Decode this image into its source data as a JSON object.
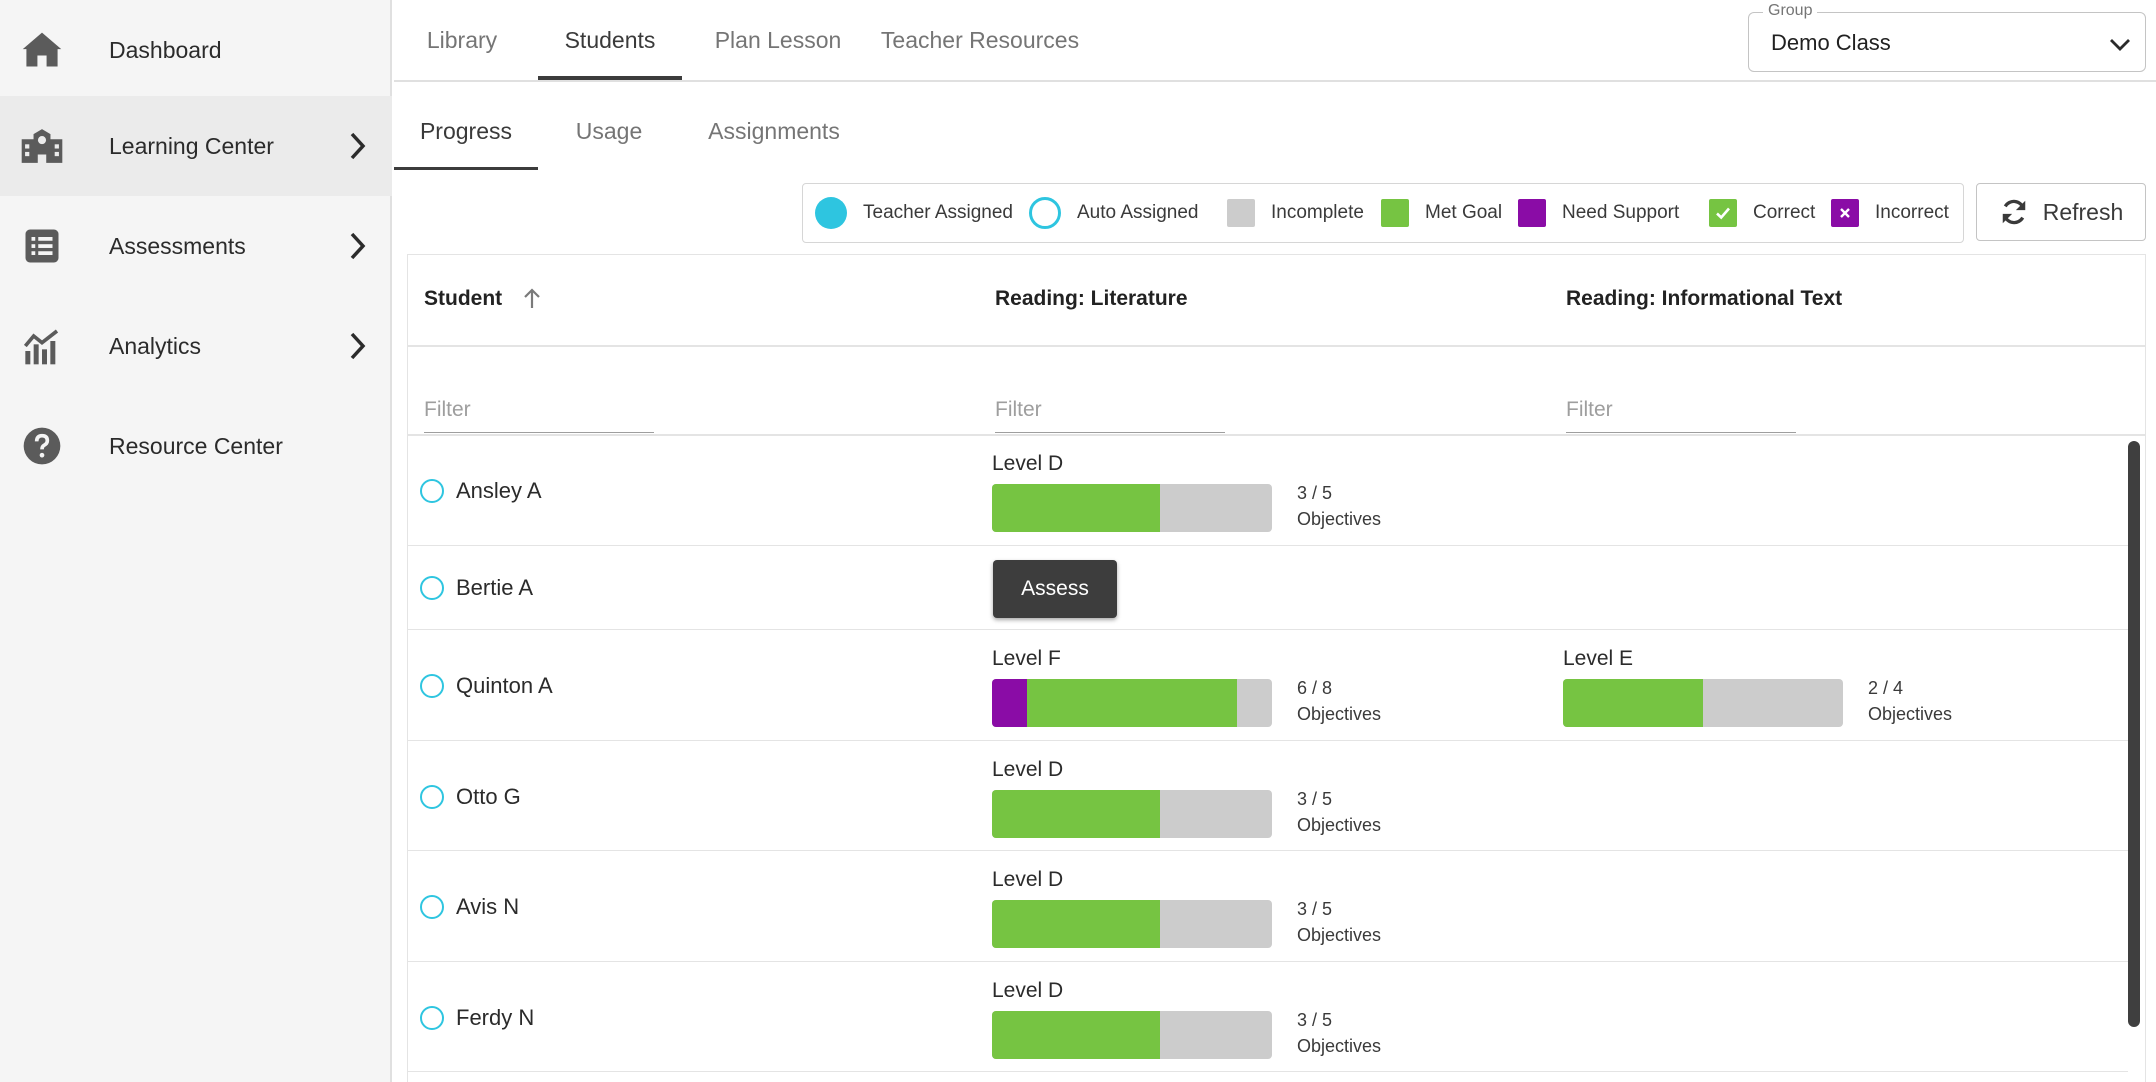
{
  "sidebar": {
    "items": [
      {
        "label": "Dashboard",
        "icon": "home-icon"
      },
      {
        "label": "Learning Center",
        "icon": "school-icon"
      },
      {
        "label": "Assessments",
        "icon": "list-icon"
      },
      {
        "label": "Analytics",
        "icon": "analytics-icon"
      },
      {
        "label": "Resource Center",
        "icon": "help-icon"
      }
    ]
  },
  "top_tabs": [
    "Library",
    "Students",
    "Plan Lesson",
    "Teacher Resources"
  ],
  "group_select": {
    "legend": "Group",
    "value": "Demo Class"
  },
  "sub_tabs": [
    "Progress",
    "Usage",
    "Assignments"
  ],
  "legend": {
    "teacher_assigned": "Teacher Assigned",
    "auto_assigned": "Auto Assigned",
    "incomplete": "Incomplete",
    "met_goal": "Met Goal",
    "need_support": "Need Support",
    "correct": "Correct",
    "incorrect": "Incorrect"
  },
  "refresh_label": "Refresh",
  "table": {
    "headers": [
      "Student",
      "Reading: Literature",
      "Reading: Informational Text"
    ],
    "filter_placeholder": "Filter",
    "rows": [
      {
        "name": "Ansley A",
        "literature": {
          "level": "Level D",
          "fraction": "3 / 5",
          "unit": "Objectives",
          "need_support": 0,
          "met_goal": 3,
          "total": 5
        }
      },
      {
        "name": "Bertie A",
        "assess_label": "Assess"
      },
      {
        "name": "Quinton A",
        "literature": {
          "level": "Level F",
          "fraction": "6 / 8",
          "unit": "Objectives",
          "need_support": 1,
          "met_goal": 6,
          "total": 8
        },
        "informational": {
          "level": "Level E",
          "fraction": "2 / 4",
          "unit": "Objectives",
          "need_support": 0,
          "met_goal": 2,
          "total": 4
        }
      },
      {
        "name": "Otto G",
        "literature": {
          "level": "Level D",
          "fraction": "3 / 5",
          "unit": "Objectives",
          "need_support": 0,
          "met_goal": 3,
          "total": 5
        }
      },
      {
        "name": "Avis N",
        "literature": {
          "level": "Level D",
          "fraction": "3 / 5",
          "unit": "Objectives",
          "need_support": 0,
          "met_goal": 3,
          "total": 5
        }
      },
      {
        "name": "Ferdy N",
        "literature": {
          "level": "Level D",
          "fraction": "3 / 5",
          "unit": "Objectives",
          "need_support": 0,
          "met_goal": 3,
          "total": 5
        }
      }
    ]
  },
  "colors": {
    "teacher_assigned": "#2ec5e0",
    "incomplete": "#cccccc",
    "met_goal": "#76c442",
    "need_support": "#8a0ca6"
  }
}
